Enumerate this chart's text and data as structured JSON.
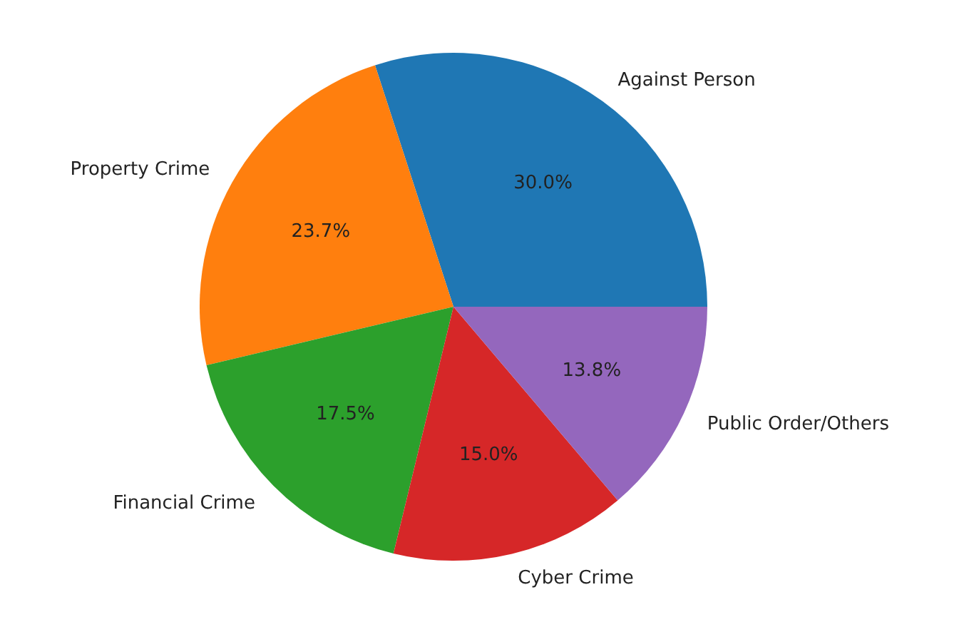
{
  "chart_data": {
    "type": "pie",
    "categories": [
      "Against Person",
      "Property Crime",
      "Financial Crime",
      "Cyber Crime",
      "Public Order/Others"
    ],
    "values": [
      30.0,
      23.7,
      17.5,
      15.0,
      13.8
    ],
    "colors": [
      "#1f77b4",
      "#ff7f0e",
      "#2ca02c",
      "#d62728",
      "#9467bd"
    ],
    "value_labels": [
      "30.0%",
      "23.7%",
      "17.5%",
      "15.0%",
      "13.8%"
    ],
    "legend": false
  }
}
